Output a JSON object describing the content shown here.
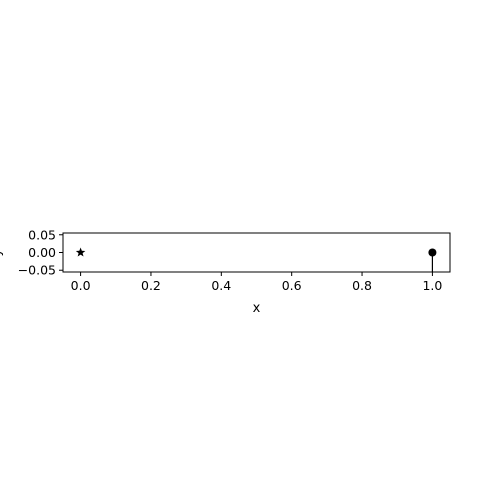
{
  "chart_data": {
    "type": "scatter",
    "xlabel": "x",
    "ylabel": "y",
    "xlim": [
      -0.05,
      1.05
    ],
    "ylim": [
      -0.055,
      0.055
    ],
    "xticks": [
      0.0,
      0.2,
      0.4,
      0.6,
      0.8,
      1.0
    ],
    "xtick_labels": [
      "0.0",
      "0.2",
      "0.4",
      "0.6",
      "0.8",
      "1.0"
    ],
    "yticks": [
      0.05,
      0.0,
      -0.05
    ],
    "ytick_labels": [
      "0.05",
      "0.00",
      "−0.05"
    ],
    "grid": false,
    "points": [
      {
        "x": 0.0,
        "y": 0.0,
        "marker": "star"
      },
      {
        "x": 1.0,
        "y": 0.0,
        "marker": "circle"
      }
    ],
    "stem": {
      "x": 1.0,
      "y_from": 0.0,
      "y_to": -0.055
    },
    "colors": {
      "marker": "#000000",
      "axes": "#000000"
    }
  }
}
